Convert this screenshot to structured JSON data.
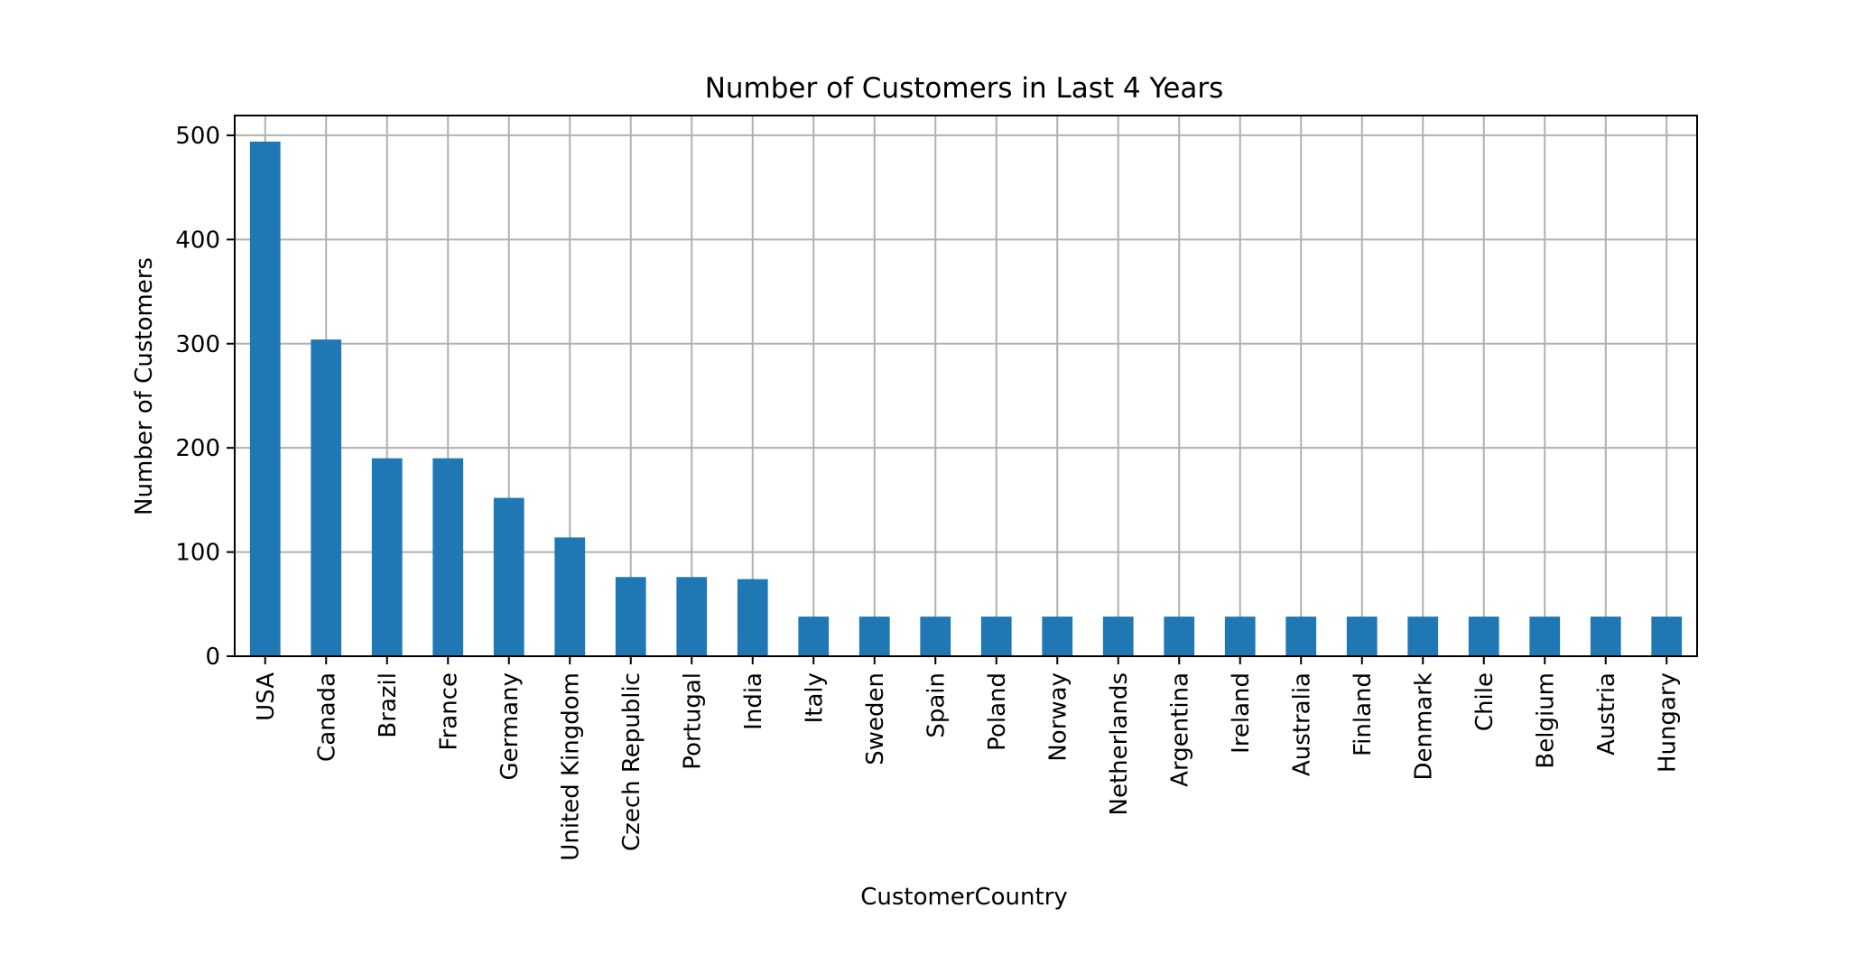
{
  "chart_data": {
    "type": "bar",
    "title": "Number of Customers in Last 4 Years",
    "xlabel": "CustomerCountry",
    "ylabel": "Number of Customers",
    "categories": [
      "USA",
      "Canada",
      "Brazil",
      "France",
      "Germany",
      "United Kingdom",
      "Czech Republic",
      "Portugal",
      "India",
      "Italy",
      "Sweden",
      "Spain",
      "Poland",
      "Norway",
      "Netherlands",
      "Argentina",
      "Ireland",
      "Australia",
      "Finland",
      "Denmark",
      "Chile",
      "Belgium",
      "Austria",
      "Hungary"
    ],
    "values": [
      494,
      304,
      190,
      190,
      152,
      114,
      76,
      76,
      74,
      38,
      38,
      38,
      38,
      38,
      38,
      38,
      38,
      38,
      38,
      38,
      38,
      38,
      38,
      38
    ],
    "ylim": [
      0,
      519
    ],
    "yticks": [
      0,
      100,
      200,
      300,
      400,
      500
    ],
    "grid": true,
    "legend": "none",
    "colors": {
      "bar": "#1f77b4",
      "grid": "#b0b0b0",
      "axis": "#000000"
    }
  }
}
